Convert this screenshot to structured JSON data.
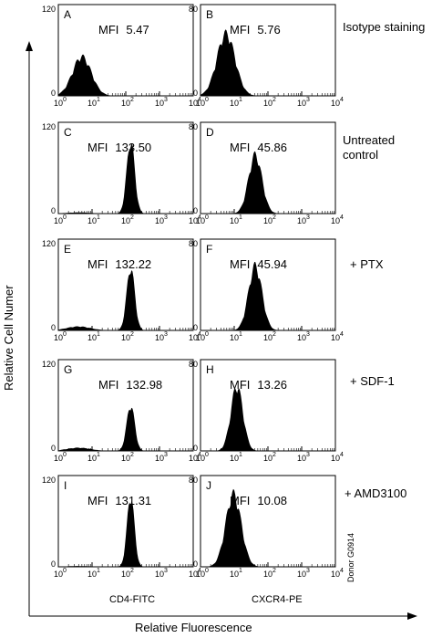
{
  "figure": {
    "ylabel": "Relative Cell Numer",
    "xlabel": "Relative Fluorescence",
    "column_labels": [
      "CD4-FITC",
      "CXCR4-PE"
    ],
    "row_labels": [
      [
        "Isotype staining"
      ],
      [
        "Untreated",
        "control"
      ],
      [
        "+ PTX"
      ],
      [
        "+ SDF-1"
      ],
      [
        "+ AMD3100"
      ]
    ],
    "donor": "Donor G0914",
    "x_tick_labels": [
      "10",
      "10",
      "10",
      "10",
      "10"
    ],
    "x_tick_exponents": [
      "0",
      "1",
      "2",
      "3",
      "4"
    ],
    "colors": {
      "fill": "#000000",
      "axis": "#000000",
      "background": "#ffffff"
    }
  },
  "chart_data": [
    {
      "type": "histogram",
      "panel": "A",
      "mfi_label": "MFI",
      "mfi_value": "5.47",
      "ylim": [
        0,
        120
      ],
      "y_ticks": [
        "0",
        "120"
      ],
      "x_scale": "log",
      "xlim": [
        1,
        10000
      ],
      "peak_x": 5,
      "peak_height": 50,
      "width": 0.28,
      "tail_height": 0
    },
    {
      "type": "histogram",
      "panel": "B",
      "mfi_label": "MFI",
      "mfi_value": "5.76",
      "ylim": [
        0,
        80
      ],
      "y_ticks": [
        "0",
        "80"
      ],
      "x_scale": "log",
      "xlim": [
        1,
        10000
      ],
      "peak_x": 5.7,
      "peak_height": 53,
      "width": 0.27,
      "tail_height": 0
    },
    {
      "type": "histogram",
      "panel": "C",
      "mfi_label": "MFI",
      "mfi_value": "133.50",
      "ylim": [
        0,
        120
      ],
      "y_ticks": [
        "0",
        "120"
      ],
      "x_scale": "log",
      "xlim": [
        1,
        10000
      ],
      "peak_x": 140,
      "peak_height": 92,
      "width": 0.12,
      "tail_height": 1.5
    },
    {
      "type": "histogram",
      "panel": "D",
      "mfi_label": "MFI",
      "mfi_value": "45.86",
      "ylim": [
        0,
        80
      ],
      "y_ticks": [
        "0",
        "80"
      ],
      "x_scale": "log",
      "xlim": [
        1,
        10000
      ],
      "peak_x": 42,
      "peak_height": 50,
      "width": 0.2,
      "tail_height": 0
    },
    {
      "type": "histogram",
      "panel": "E",
      "mfi_label": "MFI",
      "mfi_value": "132.22",
      "ylim": [
        0,
        120
      ],
      "y_ticks": [
        "0",
        "120"
      ],
      "x_scale": "log",
      "xlim": [
        1,
        10000
      ],
      "peak_x": 140,
      "peak_height": 80,
      "width": 0.12,
      "tail_height": 5
    },
    {
      "type": "histogram",
      "panel": "F",
      "mfi_label": "MFI",
      "mfi_value": "45.94",
      "ylim": [
        0,
        80
      ],
      "y_ticks": [
        "0",
        "80"
      ],
      "x_scale": "log",
      "xlim": [
        1,
        10000
      ],
      "peak_x": 42,
      "peak_height": 55,
      "width": 0.2,
      "tail_height": 0
    },
    {
      "type": "histogram",
      "panel": "G",
      "mfi_label": "MFI",
      "mfi_value": "132.98",
      "ylim": [
        0,
        120
      ],
      "y_ticks": [
        "0",
        "120"
      ],
      "x_scale": "log",
      "xlim": [
        1,
        10000
      ],
      "peak_x": 140,
      "peak_height": 58,
      "width": 0.12,
      "tail_height": 4
    },
    {
      "type": "histogram",
      "panel": "H",
      "mfi_label": "MFI",
      "mfi_value": "13.26",
      "ylim": [
        0,
        80
      ],
      "y_ticks": [
        "0",
        "80"
      ],
      "x_scale": "log",
      "xlim": [
        1,
        10000
      ],
      "peak_x": 12,
      "peak_height": 55,
      "width": 0.18,
      "tail_height": 0
    },
    {
      "type": "histogram",
      "panel": "I",
      "mfi_label": "MFI",
      "mfi_value": "131.31",
      "ylim": [
        0,
        120
      ],
      "y_ticks": [
        "0",
        "120"
      ],
      "x_scale": "log",
      "xlim": [
        1,
        10000
      ],
      "peak_x": 140,
      "peak_height": 90,
      "width": 0.11,
      "tail_height": 1
    },
    {
      "type": "histogram",
      "panel": "J",
      "mfi_label": "MFI",
      "mfi_value": "10.08",
      "ylim": [
        0,
        80
      ],
      "y_ticks": [
        "0",
        "80"
      ],
      "x_scale": "log",
      "xlim": [
        1,
        10000
      ],
      "peak_x": 9.5,
      "peak_height": 62,
      "width": 0.23,
      "tail_height": 0
    }
  ]
}
